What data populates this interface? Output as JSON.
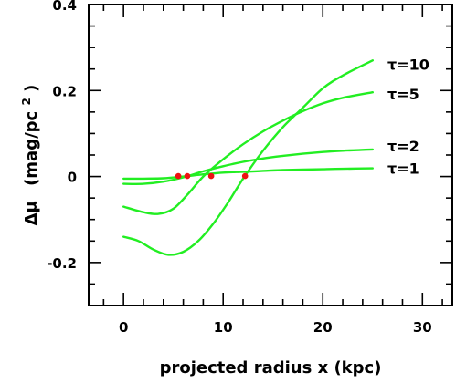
{
  "chart_data": {
    "type": "line",
    "xlabel": "projected radius x (kpc)",
    "ylabel_main": "Δμ",
    "ylabel_unit_prefix": "(mag/pc",
    "ylabel_unit_exp": "2",
    "ylabel_unit_suffix": ")",
    "xlim": [
      -3.5,
      33
    ],
    "ylim": [
      -0.3,
      0.4
    ],
    "x_major_ticks": [
      0,
      10,
      20,
      30
    ],
    "x_tick_labels": [
      "0",
      "10",
      "20",
      "30"
    ],
    "x_minor_step": 2,
    "y_major_ticks": [
      -0.2,
      0,
      0.2,
      0.4
    ],
    "y_tick_labels": [
      "-0.2",
      "0",
      "0.2",
      "0.4"
    ],
    "y_minor_step": 0.05,
    "grid": false,
    "legend": "inline-right",
    "line_color": "#22ee22",
    "marker_color": "#ee1111",
    "series": [
      {
        "name": "τ=1",
        "label_text": "τ=1",
        "x": [
          0,
          2,
          4,
          6,
          8,
          10,
          12,
          14,
          16,
          18,
          20,
          22,
          25
        ],
        "y": [
          -0.005,
          -0.005,
          -0.004,
          0.0,
          0.005,
          0.009,
          0.011,
          0.013,
          0.015,
          0.016,
          0.017,
          0.018,
          0.019
        ],
        "marker": [
          5.5,
          0.001
        ]
      },
      {
        "name": "τ=2",
        "label_text": "τ=2",
        "x": [
          0,
          2,
          4,
          6,
          8,
          10,
          12,
          14,
          16,
          18,
          20,
          22,
          25
        ],
        "y": [
          -0.017,
          -0.017,
          -0.012,
          -0.002,
          0.012,
          0.024,
          0.034,
          0.042,
          0.048,
          0.053,
          0.057,
          0.06,
          0.063
        ],
        "marker": [
          6.4,
          0.001
        ]
      },
      {
        "name": "τ=5",
        "label_text": "τ=5",
        "x": [
          0,
          2,
          3.5,
          5,
          6.5,
          8,
          10,
          12,
          14,
          16,
          18,
          20,
          22,
          25
        ],
        "y": [
          -0.07,
          -0.083,
          -0.087,
          -0.075,
          -0.04,
          0.0,
          0.04,
          0.075,
          0.105,
          0.13,
          0.152,
          0.17,
          0.183,
          0.196
        ],
        "marker": [
          8.8,
          0.001
        ]
      },
      {
        "name": "τ=10",
        "label_text": "τ=10",
        "x": [
          0,
          1.5,
          3,
          4.5,
          6,
          7.5,
          9,
          10.5,
          12,
          14,
          16,
          18,
          20,
          22,
          25
        ],
        "y": [
          -0.14,
          -0.15,
          -0.17,
          -0.182,
          -0.175,
          -0.15,
          -0.11,
          -0.06,
          -0.005,
          0.06,
          0.115,
          0.16,
          0.205,
          0.235,
          0.27
        ],
        "marker": [
          12.2,
          0.001
        ]
      }
    ]
  }
}
